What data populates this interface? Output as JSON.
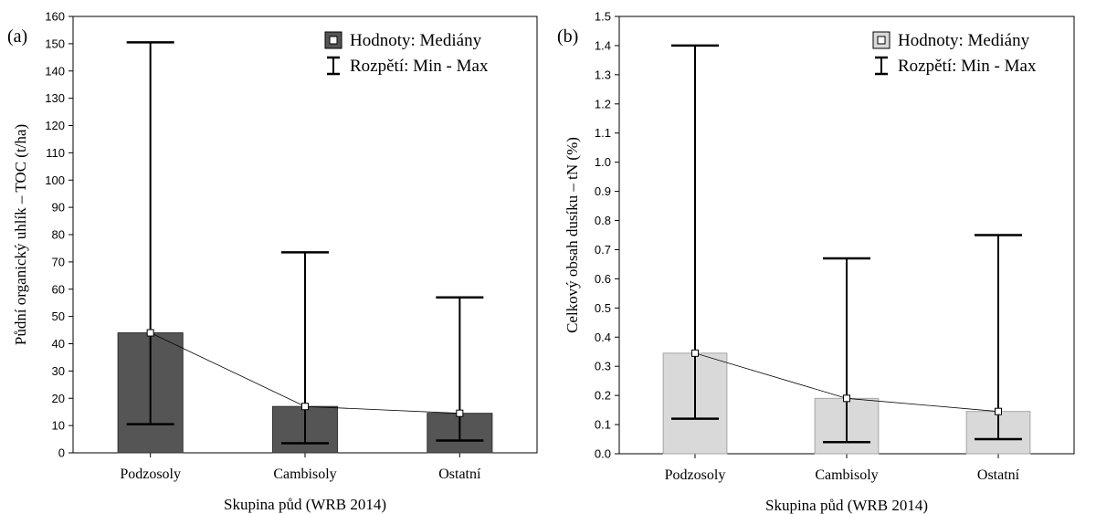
{
  "chart_data": [
    {
      "type": "bar",
      "panel_label": "(a)",
      "categories": [
        "Podzosoly",
        "Cambisoly",
        "Ostatní"
      ],
      "series": [
        {
          "name": "Hodnoty: Mediány",
          "values": [
            44,
            17,
            14.5
          ]
        }
      ],
      "error_range": {
        "name": "Rozpětí: Min - Max",
        "min": [
          10.5,
          3.5,
          4.5
        ],
        "max": [
          150.5,
          73.5,
          57
        ]
      },
      "bar_color": "#555555",
      "bar_stroke": "#333333",
      "xlabel": "Skupina půd (WRB 2014)",
      "ylabel": "Půdní organický uhlík – TOC (t/ha)",
      "ylim": [
        0,
        160
      ],
      "yticks": [
        "0",
        "10",
        "20",
        "30",
        "40",
        "50",
        "60",
        "70",
        "80",
        "90",
        "100",
        "110",
        "120",
        "130",
        "140",
        "150",
        "160"
      ],
      "legend_position": "top-right",
      "grid": false
    },
    {
      "type": "bar",
      "panel_label": "(b)",
      "categories": [
        "Podzosoly",
        "Cambisoly",
        "Ostatní"
      ],
      "series": [
        {
          "name": "Hodnoty: Mediány",
          "values": [
            0.345,
            0.19,
            0.145
          ]
        }
      ],
      "error_range": {
        "name": "Rozpětí: Min - Max",
        "min": [
          0.12,
          0.04,
          0.05
        ],
        "max": [
          1.4,
          0.67,
          0.75
        ]
      },
      "bar_color": "#d9d9d9",
      "bar_stroke": "#a6a6a6",
      "xlabel": "Skupina půd (WRB 2014)",
      "ylabel": "Celkový obsah dusíku – tN (%)",
      "ylim": [
        0,
        1.5
      ],
      "yticks": [
        "0.0",
        "0.1",
        "0.2",
        "0.3",
        "0.4",
        "0.5",
        "0.6",
        "0.7",
        "0.8",
        "0.9",
        "1.0",
        "1.1",
        "1.2",
        "1.3",
        "1.4",
        "1.5"
      ],
      "legend_position": "top-right",
      "grid": false
    }
  ]
}
